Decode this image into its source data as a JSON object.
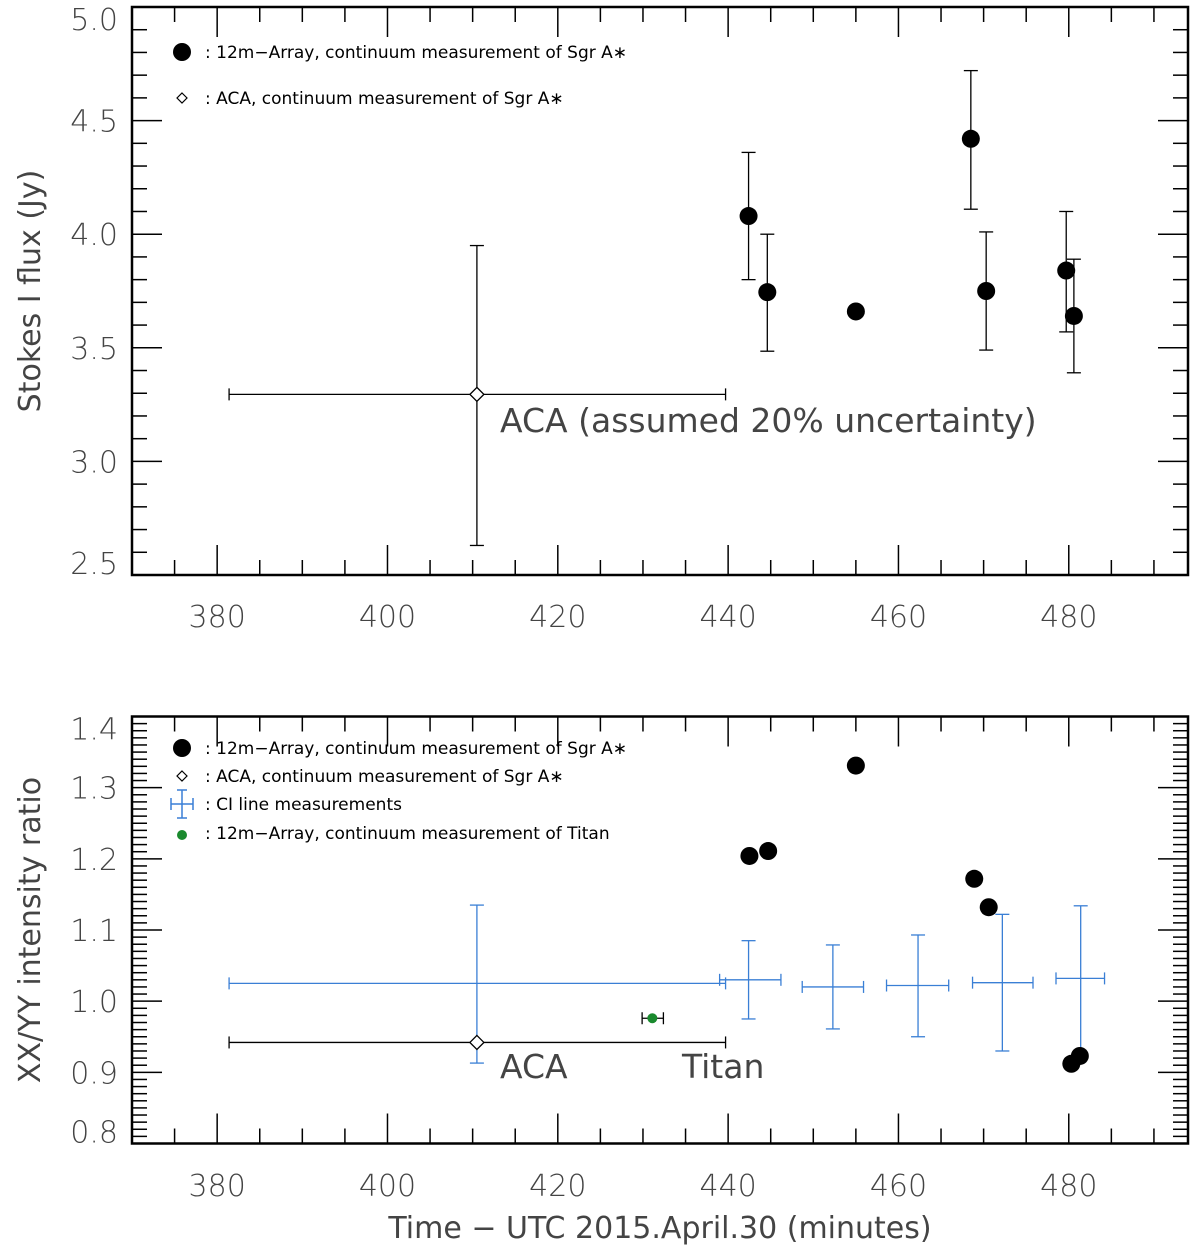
{
  "chart_data": [
    {
      "type": "scatter",
      "ylabel": "Stokes I flux (Jy)",
      "xlabel": "",
      "xlim": [
        370,
        494
      ],
      "ylim": [
        2.5,
        5.0
      ],
      "xticks": [
        380,
        400,
        420,
        440,
        460,
        480
      ],
      "yticks": [
        "2.5",
        "3.0",
        "3.5",
        "4.0",
        "4.5",
        "5.0"
      ],
      "grid": false,
      "legend_position": "top-left",
      "legend": [
        {
          "marker": "filled-circle",
          "label": ": 12m−Array, continuum measurement of Sgr A∗"
        },
        {
          "marker": "open-diamond",
          "label": ": ACA, continuum measurement of Sgr A∗"
        }
      ],
      "annotations": [
        {
          "text": "ACA (assumed 20% uncertainty)"
        }
      ],
      "series": [
        {
          "marker": "filled-circle",
          "color": "#000000",
          "points": [
            {
              "x": 442.4,
              "y": 4.08,
              "ylo": 3.8,
              "yhi": 4.36
            },
            {
              "x": 444.6,
              "y": 3.745,
              "ylo": 3.485,
              "yhi": 4.0
            },
            {
              "x": 455.0,
              "y": 3.66
            },
            {
              "x": 468.5,
              "y": 4.42,
              "ylo": 4.11,
              "yhi": 4.72
            },
            {
              "x": 470.3,
              "y": 3.75,
              "ylo": 3.49,
              "yhi": 4.01
            },
            {
              "x": 479.7,
              "y": 3.84,
              "ylo": 3.57,
              "yhi": 4.1
            },
            {
              "x": 480.6,
              "y": 3.64,
              "ylo": 3.39,
              "yhi": 3.89
            }
          ]
        },
        {
          "marker": "open-diamond",
          "color": "#000000",
          "points": [
            {
              "x": 410.5,
              "y": 3.295,
              "xlo": 381.4,
              "xhi": 439.7,
              "ylo": 2.63,
              "yhi": 3.95
            }
          ]
        }
      ]
    },
    {
      "type": "scatter",
      "ylabel": "XX/YY intensity ratio",
      "xlabel": "Time − UTC 2015.April.30 (minutes)",
      "xlim": [
        370,
        494
      ],
      "ylim": [
        0.8,
        1.4
      ],
      "xticks": [
        380,
        400,
        420,
        440,
        460,
        480
      ],
      "yticks": [
        "0.8",
        "0.9",
        "1.0",
        "1.1",
        "1.2",
        "1.3",
        "1.4"
      ],
      "grid": false,
      "legend_position": "top-left",
      "legend": [
        {
          "marker": "filled-circle",
          "label": ": 12m−Array, continuum measurement of Sgr A∗"
        },
        {
          "marker": "open-diamond",
          "label": ": ACA, continuum measurement of Sgr A∗"
        },
        {
          "marker": "cross",
          "label": ": CI line measurements"
        },
        {
          "marker": "small-green-circle",
          "label": ": 12m−Array, continuum measurement of Titan"
        }
      ],
      "annotations": [
        {
          "text": "ACA"
        },
        {
          "text": "Titan"
        }
      ],
      "series": [
        {
          "marker": "filled-circle",
          "color": "#000000",
          "points": [
            {
              "x": 442.5,
              "y": 1.204
            },
            {
              "x": 444.7,
              "y": 1.211
            },
            {
              "x": 455.0,
              "y": 1.331
            },
            {
              "x": 468.9,
              "y": 1.172
            },
            {
              "x": 470.6,
              "y": 1.132
            },
            {
              "x": 480.3,
              "y": 0.912
            },
            {
              "x": 481.3,
              "y": 0.923
            }
          ]
        },
        {
          "marker": "open-diamond",
          "color": "#000000",
          "points": [
            {
              "x": 410.5,
              "y": 0.942,
              "xlo": 381.4,
              "xhi": 439.7
            }
          ]
        },
        {
          "marker": "cross",
          "color": "#3a7fd5",
          "points": [
            {
              "x": 410.5,
              "y": 1.025,
              "xlo": 381.4,
              "xhi": 439.7,
              "ylo": 0.913,
              "yhi": 1.135
            },
            {
              "x": 442.4,
              "y": 1.03,
              "xlo": 439.0,
              "xhi": 446.2,
              "ylo": 0.975,
              "yhi": 1.085
            },
            {
              "x": 452.3,
              "y": 1.02,
              "xlo": 448.7,
              "xhi": 455.9,
              "ylo": 0.961,
              "yhi": 1.079
            },
            {
              "x": 462.3,
              "y": 1.022,
              "xlo": 458.6,
              "xhi": 465.9,
              "ylo": 0.95,
              "yhi": 1.093
            },
            {
              "x": 472.2,
              "y": 1.026,
              "xlo": 468.7,
              "xhi": 475.8,
              "ylo": 0.93,
              "yhi": 1.122
            },
            {
              "x": 481.4,
              "y": 1.032,
              "xlo": 478.5,
              "xhi": 484.2,
              "ylo": 0.926,
              "yhi": 1.134
            }
          ]
        },
        {
          "marker": "small-green-circle",
          "color": "#1a8a2e",
          "points": [
            {
              "x": 431.1,
              "y": 0.976,
              "xlo": 429.9,
              "xhi": 432.4
            }
          ]
        }
      ]
    }
  ]
}
